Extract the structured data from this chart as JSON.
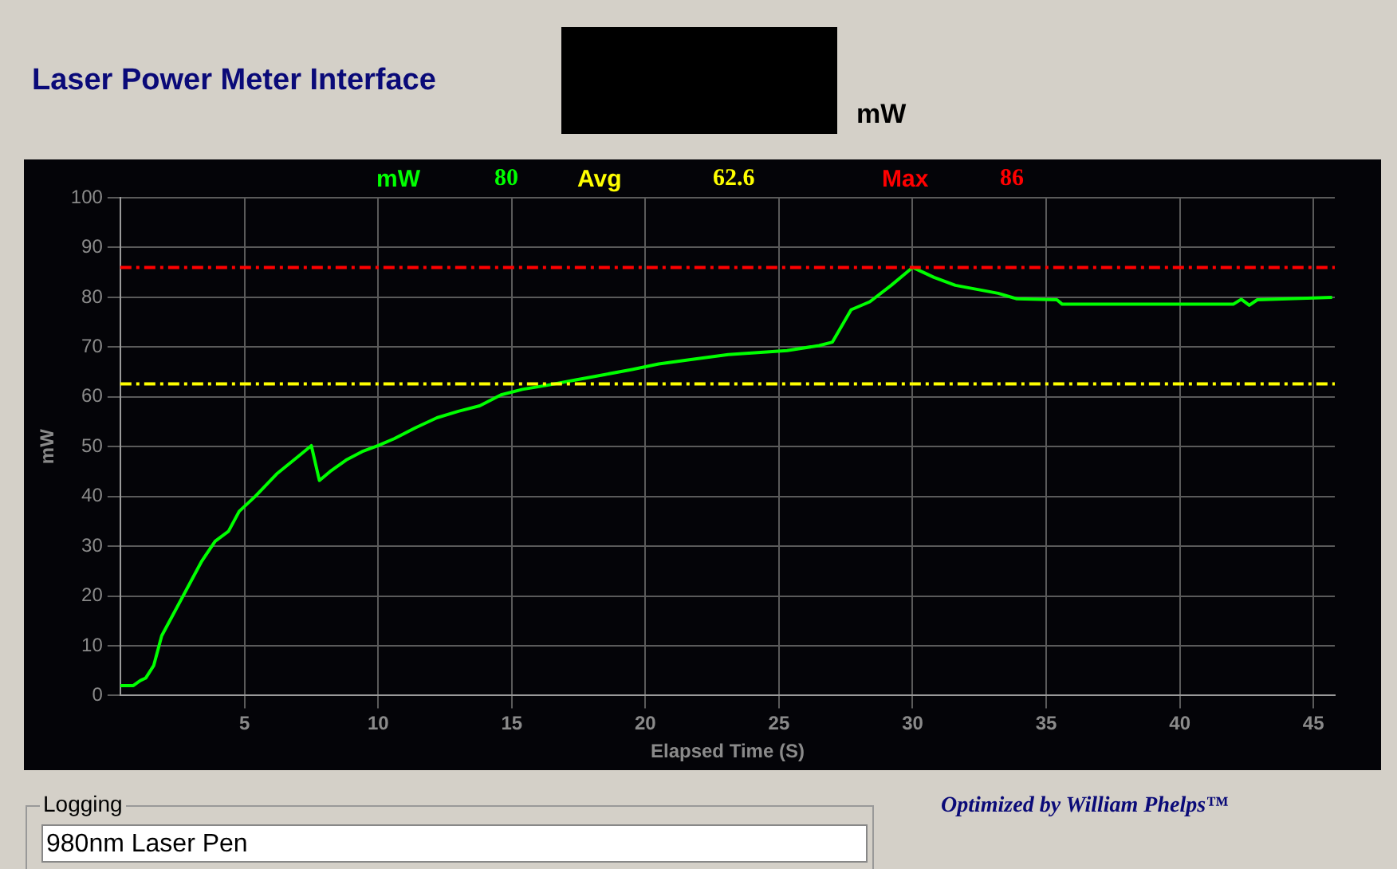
{
  "chart_data": {
    "type": "line",
    "title": "Laser Power Meter Interface",
    "xlabel": "Elapsed Time (S)",
    "ylabel": "mW",
    "x": [
      0.35,
      0.84,
      1.1,
      1.3,
      1.6,
      1.9,
      2.4,
      2.9,
      3.4,
      3.9,
      4.4,
      4.8,
      5.4,
      6.2,
      7.0,
      7.5,
      7.8,
      8.2,
      8.8,
      9.4,
      10,
      10.6,
      11.4,
      12.2,
      13,
      13.8,
      14.6,
      15.4,
      16.3,
      17.4,
      18.5,
      19.5,
      20.5,
      21.7,
      23.1,
      25.3,
      26.5,
      27,
      27.7,
      28.4,
      29.2,
      30,
      30.8,
      31.6,
      32.4,
      33.2,
      33.9,
      35.4,
      35.6,
      42,
      42.3,
      42.6,
      42.9,
      45.7
    ],
    "series": [
      {
        "name": "mW",
        "color": "#00ff00",
        "values": [
          2,
          2,
          3,
          3.5,
          6,
          12,
          17,
          22,
          27,
          31,
          33,
          37,
          40,
          44.5,
          48,
          50.2,
          43.2,
          45,
          47.3,
          49,
          50.2,
          51.6,
          53.8,
          55.8,
          57.1,
          58.2,
          60.4,
          61.5,
          62.3,
          63.4,
          64.5,
          65.5,
          66.6,
          67.5,
          68.5,
          69.3,
          70.3,
          71,
          77.5,
          79.1,
          82.4,
          86,
          84,
          82.4,
          81.6,
          80.8,
          79.7,
          79.5,
          78.6,
          78.6,
          79.6,
          78.4,
          79.5,
          80
        ]
      }
    ],
    "xlim": [
      0.35,
      45.8
    ],
    "xticks": [
      5,
      10,
      15,
      20,
      25,
      30,
      35,
      40,
      45
    ],
    "ylim": [
      0,
      100
    ],
    "yticks": [
      0,
      10,
      20,
      30,
      40,
      50,
      60,
      70,
      80,
      90,
      100
    ],
    "grid": true,
    "legend": "top",
    "marker": "none",
    "line_style": "solid",
    "ref_lines": [
      {
        "axis": "y",
        "value": 62.6,
        "label": "Avg",
        "color": "#ffff00",
        "line_style": "dashed"
      },
      {
        "axis": "y",
        "value": 86,
        "label": "Max",
        "color": "#ff0000",
        "line_style": "dashed"
      }
    ],
    "annotations": [
      "mW",
      "80",
      "62.6",
      "86",
      "Logging",
      "980nm Laser Pen",
      "Optimized by William Phelps™"
    ]
  }
}
